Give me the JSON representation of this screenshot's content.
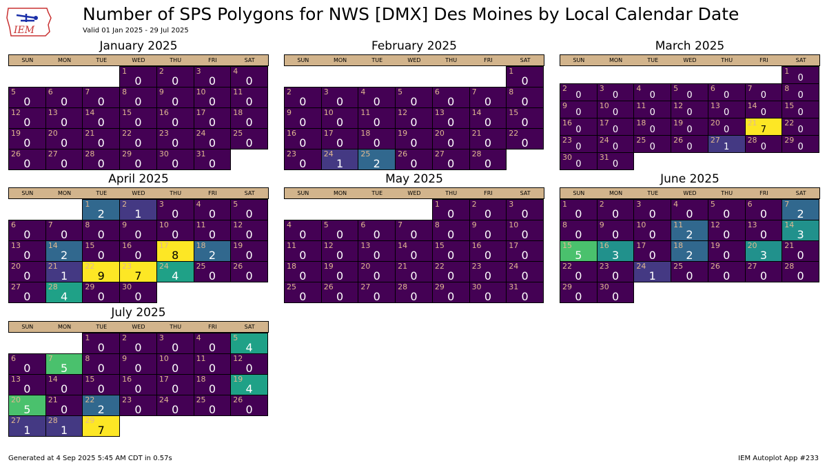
{
  "header": {
    "logo_text": "IEM",
    "title": "Number of SPS Polygons for NWS [DMX] Des Moines by Local Calendar Date",
    "subtitle": "Valid 01 Jan 2025 - 29 Jul 2025"
  },
  "footer": {
    "left": "Generated at 4 Sep 2025 5:45 AM CDT in 0.57s",
    "right": "IEM Autoplot App #233"
  },
  "weekday_labels": [
    "SUN",
    "MON",
    "TUE",
    "WED",
    "THU",
    "FRI",
    "SAT"
  ],
  "chart_data": {
    "type": "heatmap",
    "colors": {
      "0": "#440154",
      "1": "#443983",
      "2": "#31688e",
      "3": "#21918c",
      "4": "#1fa187",
      "5": "#4ac16d",
      "7": "#fde725",
      "8": "#fde725",
      "9": "#fde725"
    },
    "months": [
      {
        "title": "January 2025",
        "start_weekday": 3,
        "values": [
          0,
          0,
          0,
          0,
          0,
          0,
          0,
          0,
          0,
          0,
          0,
          0,
          0,
          0,
          0,
          0,
          0,
          0,
          0,
          0,
          0,
          0,
          0,
          0,
          0,
          0,
          0,
          0,
          0,
          0,
          0
        ]
      },
      {
        "title": "February 2025",
        "start_weekday": 6,
        "values": [
          0,
          0,
          0,
          0,
          0,
          0,
          0,
          0,
          0,
          0,
          0,
          0,
          0,
          0,
          0,
          0,
          0,
          0,
          0,
          0,
          0,
          0,
          0,
          1,
          2,
          0,
          0,
          0
        ]
      },
      {
        "title": "March 2025",
        "start_weekday": 6,
        "values": [
          0,
          0,
          0,
          0,
          0,
          0,
          0,
          0,
          0,
          0,
          0,
          0,
          0,
          0,
          0,
          0,
          0,
          0,
          0,
          0,
          7,
          0,
          0,
          0,
          0,
          0,
          1,
          0,
          0,
          0,
          0
        ]
      },
      {
        "title": "April 2025",
        "start_weekday": 2,
        "values": [
          2,
          1,
          0,
          0,
          0,
          0,
          0,
          0,
          0,
          0,
          0,
          0,
          0,
          2,
          0,
          0,
          8,
          2,
          0,
          0,
          1,
          9,
          7,
          4,
          0,
          0,
          0,
          4,
          0,
          0
        ]
      },
      {
        "title": "May 2025",
        "start_weekday": 4,
        "values": [
          0,
          0,
          0,
          0,
          0,
          0,
          0,
          0,
          0,
          0,
          0,
          0,
          0,
          0,
          0,
          0,
          0,
          0,
          0,
          0,
          0,
          0,
          0,
          0,
          0,
          0,
          0,
          0,
          0,
          0,
          0
        ]
      },
      {
        "title": "June 2025",
        "start_weekday": 0,
        "values": [
          0,
          0,
          0,
          0,
          0,
          0,
          2,
          0,
          0,
          0,
          2,
          0,
          0,
          3,
          5,
          3,
          0,
          2,
          0,
          3,
          0,
          0,
          0,
          1,
          0,
          0,
          0,
          0,
          0,
          0
        ]
      },
      {
        "title": "July 2025",
        "start_weekday": 2,
        "values": [
          0,
          0,
          0,
          0,
          4,
          0,
          5,
          0,
          0,
          0,
          0,
          0,
          0,
          0,
          0,
          0,
          0,
          0,
          4,
          5,
          0,
          2,
          0,
          0,
          0,
          0,
          1,
          1,
          7
        ]
      }
    ]
  }
}
